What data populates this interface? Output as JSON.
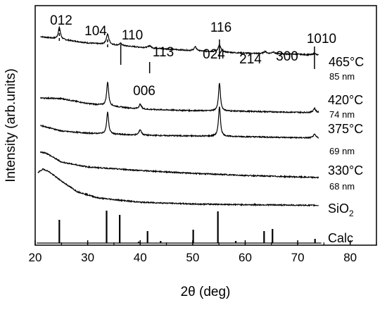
{
  "chart_data": {
    "type": "line",
    "xlabel": "2θ (deg)",
    "ylabel": "Intensity (arb.units)",
    "xlim": [
      20,
      85
    ],
    "xticks": [
      "20",
      "30",
      "40",
      "50",
      "60",
      "70",
      "80"
    ],
    "grid": false,
    "legend": "none",
    "line_color": "#000000",
    "traces": [
      {
        "label": "465°C",
        "size": "85 nm",
        "baseline": [
          [
            21,
            40
          ],
          [
            30,
            31
          ],
          [
            40,
            25
          ],
          [
            50,
            20
          ],
          [
            60,
            16.5
          ],
          [
            70,
            15
          ],
          [
            74,
            13.5
          ]
        ],
        "peaks": [
          [
            24.6,
            16.5,
            0.25
          ],
          [
            33.8,
            14.5,
            0.3
          ],
          [
            36.3,
            3,
            0.3
          ],
          [
            41.8,
            3,
            0.3
          ],
          [
            50.5,
            5.5,
            0.3
          ],
          [
            55.1,
            10,
            0.3
          ],
          [
            63.8,
            3,
            0.3
          ],
          [
            65.3,
            2.5,
            0.3
          ],
          [
            73.2,
            2.5,
            0.3
          ]
        ]
      },
      {
        "label": "420°C",
        "size": "74 nm",
        "baseline": [
          [
            21,
            21
          ],
          [
            25,
            20
          ],
          [
            30,
            13
          ],
          [
            40,
            5
          ],
          [
            50,
            3
          ],
          [
            60,
            2
          ],
          [
            74,
            0
          ]
        ],
        "peaks": [
          [
            33.8,
            34,
            0.22
          ],
          [
            40.0,
            7,
            0.28
          ],
          [
            55.1,
            40,
            0.22
          ],
          [
            73.2,
            6,
            0.3
          ]
        ]
      },
      {
        "label": "375°C",
        "size": "69 nm",
        "baseline": [
          [
            21,
            18
          ],
          [
            25,
            10
          ],
          [
            30,
            7
          ],
          [
            40,
            4
          ],
          [
            50,
            3
          ],
          [
            60,
            2
          ],
          [
            74,
            0
          ]
        ],
        "peaks": [
          [
            33.8,
            31,
            0.22
          ],
          [
            40.0,
            8,
            0.28
          ],
          [
            55.1,
            43,
            0.22
          ],
          [
            73.2,
            5,
            0.3
          ]
        ]
      },
      {
        "label": "330°C",
        "size": "68 nm",
        "baseline": [
          [
            21,
            39
          ],
          [
            22,
            38
          ],
          [
            25,
            25
          ],
          [
            30,
            18
          ],
          [
            40,
            13
          ],
          [
            50,
            9
          ],
          [
            60,
            6
          ],
          [
            74,
            3
          ]
        ],
        "peaks": []
      },
      {
        "label": "SiO2",
        "size": "",
        "baseline": [
          [
            20.5,
            47
          ],
          [
            21.5,
            52
          ],
          [
            22.5,
            49
          ],
          [
            25,
            35
          ],
          [
            28,
            20
          ],
          [
            32,
            11
          ],
          [
            40,
            5
          ],
          [
            50,
            2.5
          ],
          [
            60,
            1.5
          ],
          [
            74,
            0.5
          ]
        ],
        "peaks": []
      }
    ],
    "calc": {
      "label": "Calc",
      "peaks": [
        [
          24.6,
          33
        ],
        [
          33.6,
          46
        ],
        [
          36.1,
          40
        ],
        [
          39.7,
          2
        ],
        [
          41.4,
          17
        ],
        [
          43.9,
          3
        ],
        [
          50.1,
          19
        ],
        [
          54.8,
          45
        ],
        [
          58.2,
          3
        ],
        [
          63.6,
          17
        ],
        [
          65.2,
          20
        ],
        [
          73.3,
          6
        ]
      ]
    },
    "annotations": [
      {
        "text": "012",
        "x": 24.6
      },
      {
        "text": "104",
        "x": 33.8
      },
      {
        "text": "110",
        "x": 36.3
      },
      {
        "text": "113",
        "x": 41.8
      },
      {
        "text": "024",
        "x": 50.5
      },
      {
        "text": "116",
        "x": 55.1
      },
      {
        "text": "214",
        "x": 63.8
      },
      {
        "text": "300",
        "x": 65.3
      },
      {
        "text": "1010",
        "x": 73.2
      },
      {
        "text": "006",
        "x": 40.0
      }
    ]
  }
}
